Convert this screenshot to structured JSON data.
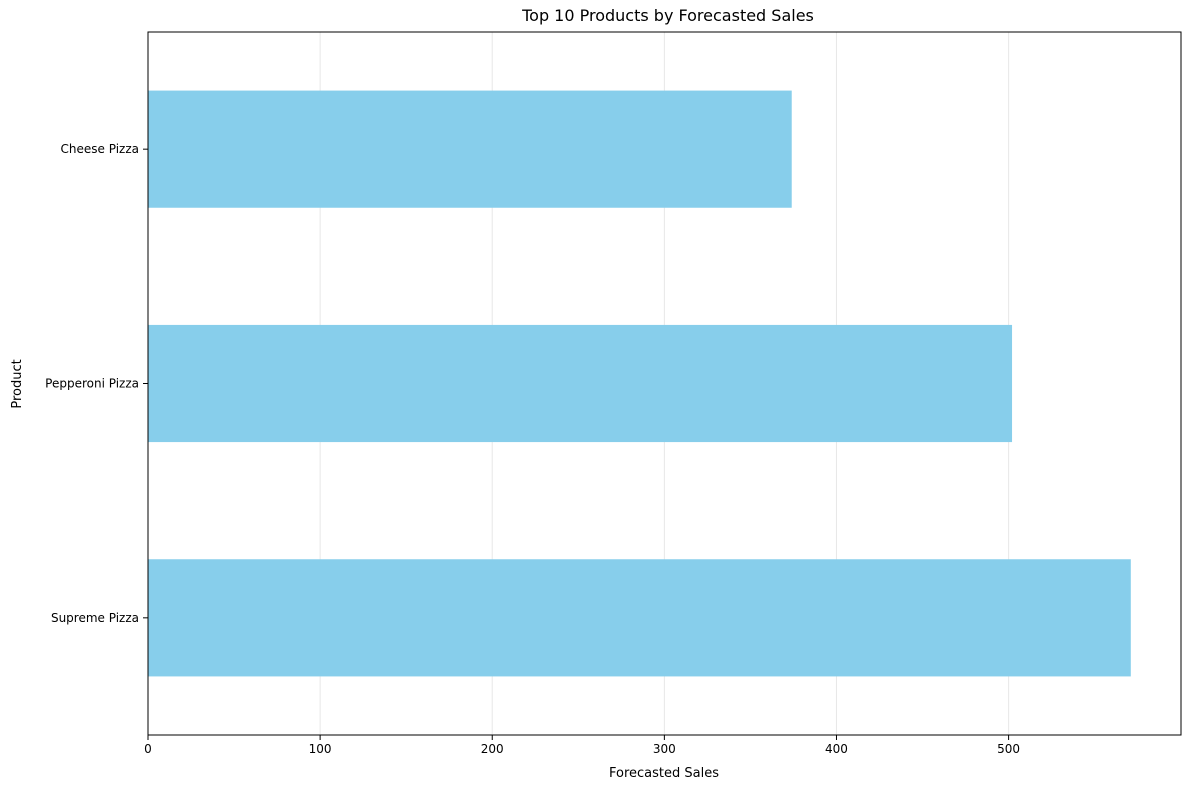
{
  "chart_data": {
    "type": "bar",
    "orientation": "horizontal",
    "title": "Top 10 Products by Forecasted Sales",
    "xlabel": "Forecasted Sales",
    "ylabel": "Product",
    "categories": [
      "Cheese Pizza",
      "Pepperoni Pizza",
      "Supreme Pizza"
    ],
    "values": [
      374,
      502,
      571
    ],
    "xlim": [
      0,
      600
    ],
    "xticks": [
      0,
      100,
      200,
      300,
      400,
      500
    ],
    "grid": "x-axis",
    "bar_color": "#87CEEB"
  }
}
